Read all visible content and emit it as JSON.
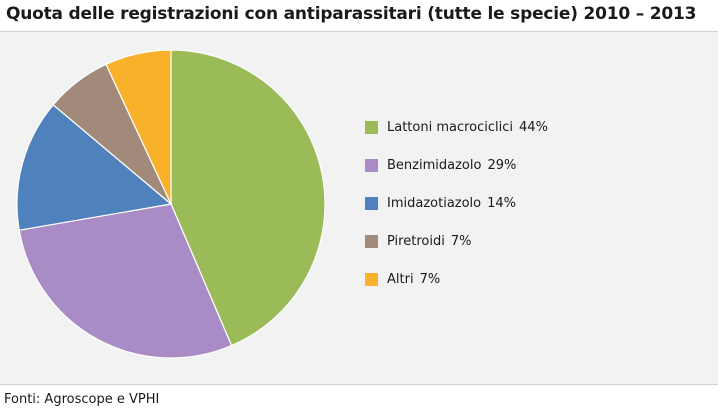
{
  "title": "Quota delle registrazioni con antiparassitari (tutte le specie) 2010 – 2013",
  "source": "Fonti: Agroscope e VPHI",
  "chart_data": {
    "type": "pie",
    "title": "Quota delle registrazioni con antiparassitari (tutte le specie) 2010 – 2013",
    "legend_position": "right",
    "slices": [
      {
        "label": "Lattoni macrociclici",
        "value": 44,
        "display": "44%",
        "color": "#9bbb59"
      },
      {
        "label": "Benzimidazolo",
        "value": 29,
        "display": "29%",
        "color": "#a98bc6"
      },
      {
        "label": "Imidazotiazolo",
        "value": 14,
        "display": "14%",
        "color": "#4f81bd"
      },
      {
        "label": "Piretroidi",
        "value": 7,
        "display": "7%",
        "color": "#a18a7a"
      },
      {
        "label": "Altri",
        "value": 7,
        "display": "7%",
        "color": "#f9b02b"
      }
    ]
  }
}
